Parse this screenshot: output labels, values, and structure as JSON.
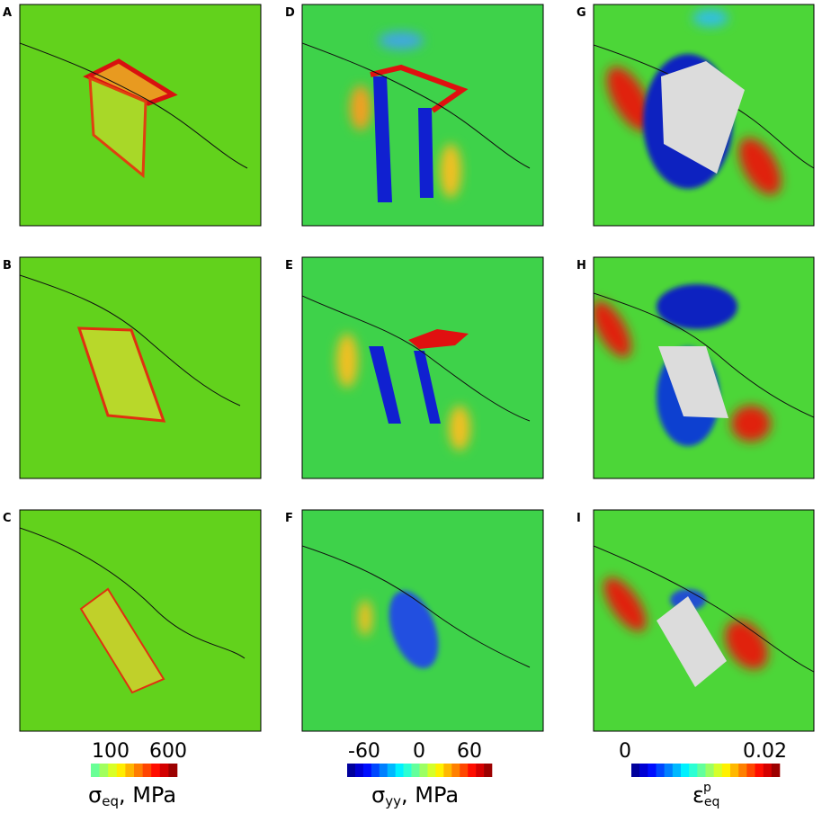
{
  "panels": [
    {
      "label": "A"
    },
    {
      "label": "D"
    },
    {
      "label": "G"
    },
    {
      "label": "B"
    },
    {
      "label": "E"
    },
    {
      "label": "H"
    },
    {
      "label": "C"
    },
    {
      "label": "F"
    },
    {
      "label": "I"
    }
  ],
  "colorbars": [
    {
      "ticks": [
        "100",
        "600"
      ],
      "symbol": "σ",
      "sub": "eq",
      "unit": ", MPa"
    },
    {
      "ticks": [
        "-60",
        "0",
        "60"
      ],
      "symbol": "σ",
      "sub": "yy",
      "unit": ", MPa"
    },
    {
      "ticks": [
        "0",
        "0.02"
      ],
      "symbol": "ε",
      "sub": "eq",
      "sup": "p"
    }
  ]
}
